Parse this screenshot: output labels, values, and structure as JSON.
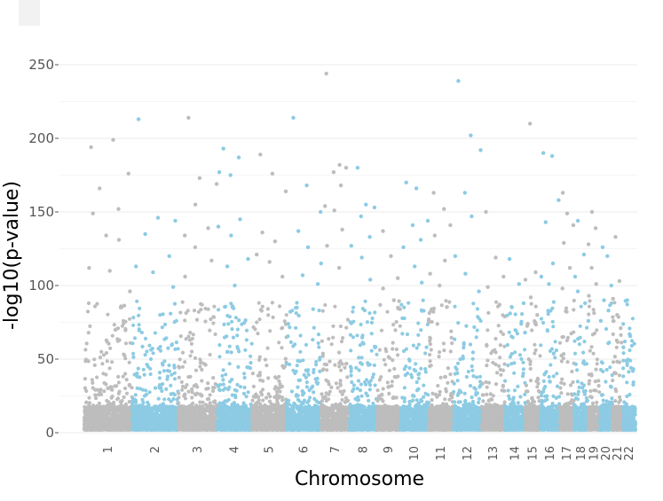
{
  "chart_data": {
    "type": "scatter",
    "subtype": "manhattan",
    "title": "",
    "xlabel": "Chromosome",
    "ylabel": "-log10(p-value)",
    "ylim": [
      0,
      260
    ],
    "yticks": [
      0,
      50,
      100,
      150,
      200,
      250
    ],
    "colors": {
      "odd": "#bdbdbd",
      "even": "#8ccbe3",
      "grid": "#ebebeb"
    },
    "chromosomes": [
      {
        "label": "1",
        "color": "odd",
        "top_values": [
          194,
          199,
          176,
          166,
          152,
          149,
          134,
          131,
          112,
          110,
          96
        ]
      },
      {
        "label": "2",
        "color": "even",
        "top_values": [
          213,
          146,
          144,
          135,
          120,
          113,
          109,
          99
        ]
      },
      {
        "label": "3",
        "color": "odd",
        "top_values": [
          214,
          173,
          169,
          155,
          139,
          134,
          126,
          117,
          106
        ]
      },
      {
        "label": "4",
        "color": "even",
        "top_values": [
          193,
          187,
          177,
          175,
          145,
          140,
          134,
          118,
          113,
          100
        ]
      },
      {
        "label": "5",
        "color": "odd",
        "top_values": [
          189,
          176,
          164,
          136,
          130,
          121,
          116,
          106
        ]
      },
      {
        "label": "6",
        "color": "even",
        "top_values": [
          214,
          168,
          150,
          137,
          126,
          115,
          107,
          101
        ]
      },
      {
        "label": "7",
        "color": "odd",
        "top_values": [
          244,
          182,
          180,
          177,
          168,
          154,
          151,
          138,
          127,
          112
        ]
      },
      {
        "label": "8",
        "color": "even",
        "top_values": [
          180,
          155,
          153,
          147,
          133,
          127,
          119,
          104
        ]
      },
      {
        "label": "9",
        "color": "odd",
        "top_values": [
          137,
          120,
          105,
          98,
          90,
          84
        ]
      },
      {
        "label": "10",
        "color": "even",
        "top_values": [
          170,
          166,
          144,
          141,
          131,
          126,
          113,
          102
        ]
      },
      {
        "label": "11",
        "color": "odd",
        "top_values": [
          163,
          152,
          141,
          134,
          117,
          108,
          100
        ]
      },
      {
        "label": "12",
        "color": "even",
        "top_values": [
          239,
          202,
          192,
          163,
          147,
          120,
          108,
          96
        ]
      },
      {
        "label": "13",
        "color": "odd",
        "top_values": [
          150,
          119,
          106,
          99,
          87,
          79
        ]
      },
      {
        "label": "14",
        "color": "even",
        "top_values": [
          118,
          101,
          88,
          81,
          74,
          68
        ]
      },
      {
        "label": "15",
        "color": "odd",
        "top_values": [
          210,
          109,
          104,
          92,
          80,
          74
        ]
      },
      {
        "label": "16",
        "color": "even",
        "top_values": [
          190,
          188,
          158,
          143,
          115,
          106,
          101
        ]
      },
      {
        "label": "17",
        "color": "odd",
        "top_values": [
          163,
          149,
          141,
          129,
          112,
          98
        ]
      },
      {
        "label": "18",
        "color": "even",
        "top_values": [
          144,
          121,
          106,
          96,
          88,
          76
        ]
      },
      {
        "label": "19",
        "color": "odd",
        "top_values": [
          150,
          139,
          128,
          112,
          101,
          93
        ]
      },
      {
        "label": "20",
        "color": "even",
        "top_values": [
          126,
          120,
          100,
          90,
          83,
          76
        ]
      },
      {
        "label": "21",
        "color": "odd",
        "top_values": [
          133,
          103,
          91,
          80,
          71
        ]
      },
      {
        "label": "22",
        "color": "even",
        "top_values": [
          90,
          67,
          58,
          49,
          42
        ]
      }
    ]
  }
}
